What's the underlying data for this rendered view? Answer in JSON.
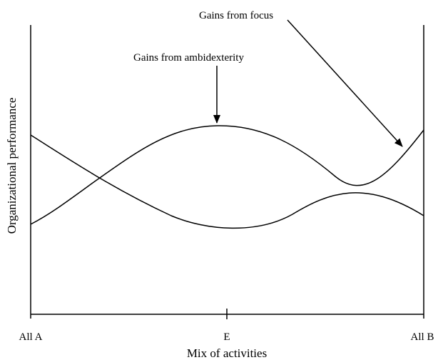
{
  "annotations": {
    "focus": "Gains from focus",
    "ambidexterity": "Gains from ambidexterity"
  },
  "axes": {
    "ylabel": "Organizational performance",
    "xlabel": "Mix of activities",
    "ticks": [
      "All A",
      "E",
      "All B"
    ]
  },
  "curves": [
    {
      "name": "ambidexterity-curve",
      "shape": "inverted-U, peak at E"
    },
    {
      "name": "focus-curve",
      "shape": "U-shaped, trough at E"
    }
  ],
  "colors": {
    "ink": "#000000",
    "background": "#ffffff"
  }
}
